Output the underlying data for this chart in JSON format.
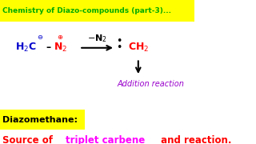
{
  "title": "Chemistry of Diazo-compounds (part-3)...",
  "title_bg": "#ffff00",
  "title_color": "#00aa00",
  "bg_color": "#ffffff",
  "bottom_label1": "Diazomethane:",
  "bottom_label2_prefix": "Source of ",
  "bottom_label2_underline": "triplet carbene",
  "bottom_label2_suffix": " and reaction.",
  "bottom_label2_color": "#ff0000",
  "bottom_label2_underline_color": "#ff00ff",
  "addition_text": "Addition reaction",
  "addition_color": "#9900cc",
  "h2c_color": "#0000cc",
  "n2_color": "#ff0000",
  "ch2_color": "#ff0000",
  "arrow_color": "#000000",
  "minus_n2_color": "#000000"
}
